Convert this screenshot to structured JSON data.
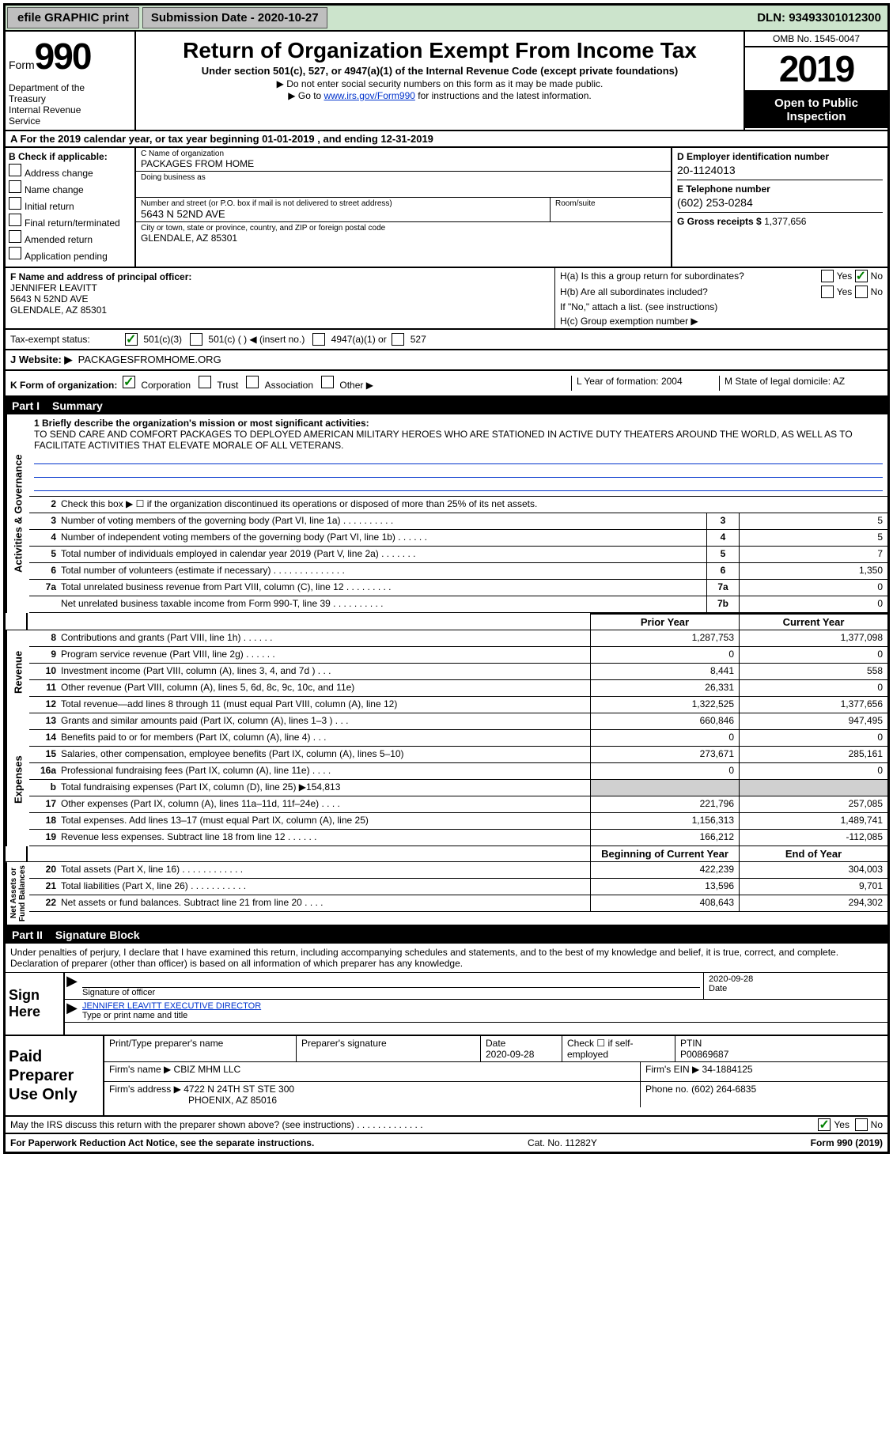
{
  "topbar": {
    "efile_btn": "efile GRAPHIC print",
    "sub_date_lbl": "Submission Date - 2020-10-27",
    "dln": "DLN: 93493301012300"
  },
  "header": {
    "form_word": "Form",
    "form_num": "990",
    "dept": "Department of the Treasury\nInternal Revenue Service",
    "title": "Return of Organization Exempt From Income Tax",
    "sub1": "Under section 501(c), 527, or 4947(a)(1) of the Internal Revenue Code (except private foundations)",
    "sub2": "▶ Do not enter social security numbers on this form as it may be made public.",
    "sub3_pre": "▶ Go to ",
    "sub3_link": "www.irs.gov/Form990",
    "sub3_post": " for instructions and the latest information.",
    "omb": "OMB No. 1545-0047",
    "year": "2019",
    "open_pub": "Open to Public Inspection"
  },
  "section_a": "A For the 2019 calendar year, or tax year beginning 01-01-2019    , and ending 12-31-2019",
  "col_b": {
    "hdr": "B Check if applicable:",
    "items": [
      "Address change",
      "Name change",
      "Initial return",
      "Final return/terminated",
      "Amended return",
      "Application pending"
    ]
  },
  "col_c": {
    "name_lbl": "C Name of organization",
    "name": "PACKAGES FROM HOME",
    "dba_lbl": "Doing business as",
    "addr_lbl": "Number and street (or P.O. box if mail is not delivered to street address)",
    "room_lbl": "Room/suite",
    "addr": "5643 N 52ND AVE",
    "city_lbl": "City or town, state or province, country, and ZIP or foreign postal code",
    "city": "GLENDALE, AZ  85301"
  },
  "col_d": {
    "ein_lbl": "D Employer identification number",
    "ein": "20-1124013",
    "tel_lbl": "E Telephone number",
    "tel": "(602) 253-0284",
    "gross_lbl": "G Gross receipts $",
    "gross": "1,377,656"
  },
  "f_block": {
    "lbl": "F  Name and address of principal officer:",
    "name": "JENNIFER LEAVITT",
    "addr1": "5643 N 52ND AVE",
    "addr2": "GLENDALE, AZ  85301"
  },
  "h_block": {
    "ha": "H(a)  Is this a group return for subordinates?",
    "hb": "H(b)  Are all subordinates included?",
    "hb_note": "If \"No,\" attach a list. (see instructions)",
    "hc": "H(c)  Group exemption number ▶",
    "yes": "Yes",
    "no": "No"
  },
  "status": {
    "lbl": "Tax-exempt status:",
    "a": "501(c)(3)",
    "b": "501(c) (   ) ◀ (insert no.)",
    "c": "4947(a)(1) or",
    "d": "527"
  },
  "website": {
    "lbl": "J   Website: ▶",
    "val": "PACKAGESFROMHOME.ORG"
  },
  "k_row": {
    "lbl": "K Form of organization:",
    "opts": [
      "Corporation",
      "Trust",
      "Association",
      "Other ▶"
    ],
    "l": "L Year of formation: 2004",
    "m": "M State of legal domicile: AZ"
  },
  "part1": {
    "num": "Part I",
    "ttl": "Summary"
  },
  "mission": {
    "lbl": "1  Briefly describe the organization's mission or most significant activities:",
    "txt": "TO SEND CARE AND COMFORT PACKAGES TO DEPLOYED AMERICAN MILITARY HEROES WHO ARE STATIONED IN ACTIVE DUTY THEATERS AROUND THE WORLD, AS WELL AS TO FACILITATE ACTIVITIES THAT ELEVATE MORALE OF ALL VETERANS."
  },
  "line2": "Check this box ▶ ☐ if the organization discontinued its operations or disposed of more than 25% of its net assets.",
  "gov_lines": [
    {
      "n": "3",
      "t": "Number of voting members of the governing body (Part VI, line 1a)  .   .   .   .   .   .   .   .   .   .",
      "b": "3",
      "v": "5"
    },
    {
      "n": "4",
      "t": "Number of independent voting members of the governing body (Part VI, line 1b)  .   .   .   .   .   .",
      "b": "4",
      "v": "5"
    },
    {
      "n": "5",
      "t": "Total number of individuals employed in calendar year 2019 (Part V, line 2a)  .   .   .   .   .   .   .",
      "b": "5",
      "v": "7"
    },
    {
      "n": "6",
      "t": "Total number of volunteers (estimate if necessary)    .   .   .   .   .   .   .   .   .   .   .   .   .   .",
      "b": "6",
      "v": "1,350"
    },
    {
      "n": "7a",
      "t": "Total unrelated business revenue from Part VIII, column (C), line 12   .   .   .   .   .   .   .   .   .",
      "b": "7a",
      "v": "0"
    },
    {
      "n": "",
      "t": "Net unrelated business taxable income from Form 990-T, line 39   .   .   .   .   .   .   .   .   .   .",
      "b": "7b",
      "v": "0"
    }
  ],
  "col_hdrs": {
    "py": "Prior Year",
    "cy": "Current Year"
  },
  "rev_lines": [
    {
      "n": "8",
      "t": "Contributions and grants (Part VIII, line 1h)   .   .   .   .   .   .",
      "py": "1,287,753",
      "cy": "1,377,098"
    },
    {
      "n": "9",
      "t": "Program service revenue (Part VIII, line 2g)   .   .   .   .   .   .",
      "py": "0",
      "cy": "0"
    },
    {
      "n": "10",
      "t": "Investment income (Part VIII, column (A), lines 3, 4, and 7d )   .   .   .",
      "py": "8,441",
      "cy": "558"
    },
    {
      "n": "11",
      "t": "Other revenue (Part VIII, column (A), lines 5, 6d, 8c, 9c, 10c, and 11e)",
      "py": "26,331",
      "cy": "0"
    },
    {
      "n": "12",
      "t": "Total revenue—add lines 8 through 11 (must equal Part VIII, column (A), line 12)",
      "py": "1,322,525",
      "cy": "1,377,656"
    }
  ],
  "exp_lines": [
    {
      "n": "13",
      "t": "Grants and similar amounts paid (Part IX, column (A), lines 1–3 )  .   .   .",
      "py": "660,846",
      "cy": "947,495"
    },
    {
      "n": "14",
      "t": "Benefits paid to or for members (Part IX, column (A), line 4)   .   .   .",
      "py": "0",
      "cy": "0"
    },
    {
      "n": "15",
      "t": "Salaries, other compensation, employee benefits (Part IX, column (A), lines 5–10)",
      "py": "273,671",
      "cy": "285,161"
    },
    {
      "n": "16a",
      "t": "Professional fundraising fees (Part IX, column (A), line 11e)   .   .   .   .",
      "py": "0",
      "cy": "0"
    },
    {
      "n": "b",
      "t": "Total fundraising expenses (Part IX, column (D), line 25) ▶154,813",
      "py": "",
      "cy": "",
      "shade": true
    },
    {
      "n": "17",
      "t": "Other expenses (Part IX, column (A), lines 11a–11d, 11f–24e)  .   .   .   .",
      "py": "221,796",
      "cy": "257,085"
    },
    {
      "n": "18",
      "t": "Total expenses. Add lines 13–17 (must equal Part IX, column (A), line 25)",
      "py": "1,156,313",
      "cy": "1,489,741"
    },
    {
      "n": "19",
      "t": "Revenue less expenses. Subtract line 18 from line 12   .   .   .   .   .   .",
      "py": "166,212",
      "cy": "-112,085"
    }
  ],
  "na_hdrs": {
    "b": "Beginning of Current Year",
    "e": "End of Year"
  },
  "na_lines": [
    {
      "n": "20",
      "t": "Total assets (Part X, line 16)  .   .   .   .   .   .   .   .   .   .   .   .",
      "py": "422,239",
      "cy": "304,003"
    },
    {
      "n": "21",
      "t": "Total liabilities (Part X, line 26)  .   .   .   .   .   .   .   .   .   .   .",
      "py": "13,596",
      "cy": "9,701"
    },
    {
      "n": "22",
      "t": "Net assets or fund balances. Subtract line 21 from line 20   .   .   .   .",
      "py": "408,643",
      "cy": "294,302"
    }
  ],
  "part2": {
    "num": "Part II",
    "ttl": "Signature Block"
  },
  "declare": "Under penalties of perjury, I declare that I have examined this return, including accompanying schedules and statements, and to the best of my knowledge and belief, it is true, correct, and complete. Declaration of preparer (other than officer) is based on all information of which preparer has any knowledge.",
  "sign": {
    "lbl": "Sign Here",
    "sig_lbl": "Signature of officer",
    "date_lbl": "Date",
    "date": "2020-09-28",
    "name": "JENNIFER LEAVITT EXECUTIVE DIRECTOR",
    "name_lbl": "Type or print name and title"
  },
  "prep": {
    "lbl": "Paid Preparer Use Only",
    "h1": "Print/Type preparer's name",
    "h2": "Preparer's signature",
    "h3": "Date",
    "date": "2020-09-28",
    "h4": "Check ☐ if self-employed",
    "h5": "PTIN",
    "ptin": "P00869687",
    "firm_lbl": "Firm's name    ▶",
    "firm": "CBIZ MHM LLC",
    "ein_lbl": "Firm's EIN ▶",
    "ein": "34-1884125",
    "addr_lbl": "Firm's address ▶",
    "addr1": "4722 N 24TH ST STE 300",
    "addr2": "PHOENIX, AZ  85016",
    "phone_lbl": "Phone no.",
    "phone": "(602) 264-6835"
  },
  "discuss": {
    "txt": "May the IRS discuss this return with the preparer shown above? (see instructions)   .   .   .   .   .   .   .   .   .   .   .   .   .",
    "yes": "Yes",
    "no": "No"
  },
  "footer": {
    "l": "For Paperwork Reduction Act Notice, see the separate instructions.",
    "m": "Cat. No. 11282Y",
    "r": "Form 990 (2019)"
  },
  "colors": {
    "topbar_bg": "#cce4cc",
    "link": "#0033cc",
    "shade": "#d0d0d0",
    "check": "#008000"
  }
}
